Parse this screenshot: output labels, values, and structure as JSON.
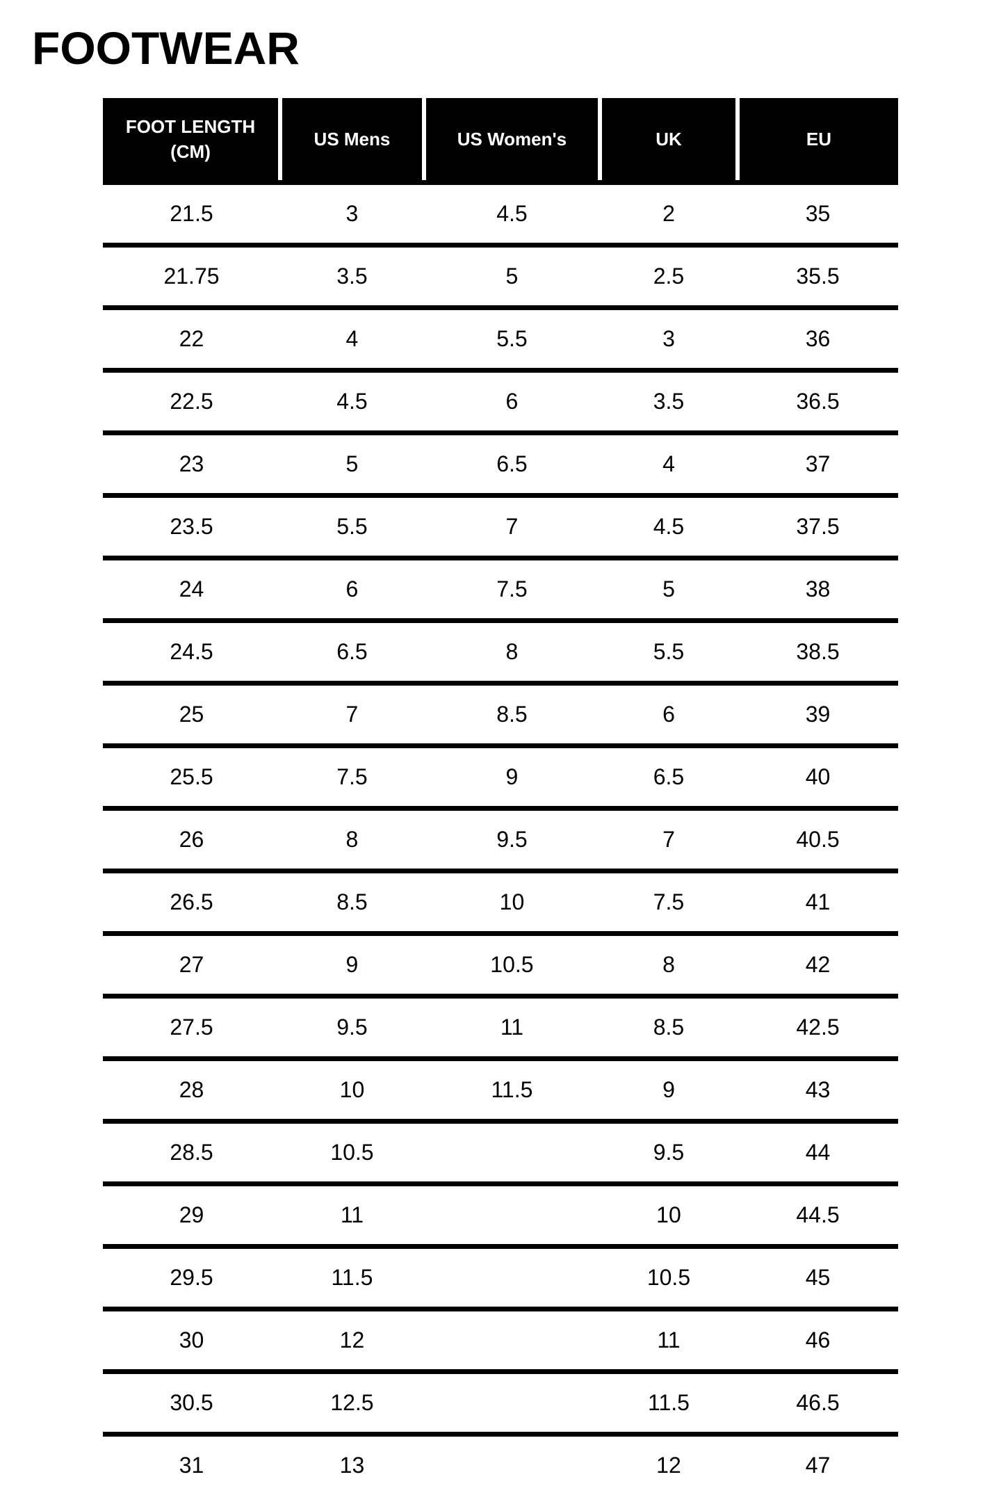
{
  "title": "FOOTWEAR",
  "table": {
    "columns": [
      "FOOT LENGTH (CM)",
      "US Mens",
      "US Women's",
      "UK",
      "EU"
    ],
    "rows": [
      [
        "21.5",
        "3",
        "4.5",
        "2",
        "35"
      ],
      [
        "21.75",
        "3.5",
        "5",
        "2.5",
        "35.5"
      ],
      [
        "22",
        "4",
        "5.5",
        "3",
        "36"
      ],
      [
        "22.5",
        "4.5",
        "6",
        "3.5",
        "36.5"
      ],
      [
        "23",
        "5",
        "6.5",
        "4",
        "37"
      ],
      [
        "23.5",
        "5.5",
        "7",
        "4.5",
        "37.5"
      ],
      [
        "24",
        "6",
        "7.5",
        "5",
        "38"
      ],
      [
        "24.5",
        "6.5",
        "8",
        "5.5",
        "38.5"
      ],
      [
        "25",
        "7",
        "8.5",
        "6",
        "39"
      ],
      [
        "25.5",
        "7.5",
        "9",
        "6.5",
        "40"
      ],
      [
        "26",
        "8",
        "9.5",
        "7",
        "40.5"
      ],
      [
        "26.5",
        "8.5",
        "10",
        "7.5",
        "41"
      ],
      [
        "27",
        "9",
        "10.5",
        "8",
        "42"
      ],
      [
        "27.5",
        "9.5",
        "11",
        "8.5",
        "42.5"
      ],
      [
        "28",
        "10",
        "11.5",
        "9",
        "43"
      ],
      [
        "28.5",
        "10.5",
        "",
        "9.5",
        "44"
      ],
      [
        "29",
        "11",
        "",
        "10",
        "44.5"
      ],
      [
        "29.5",
        "11.5",
        "",
        "10.5",
        "45"
      ],
      [
        "30",
        "12",
        "",
        "11",
        "46"
      ],
      [
        "30.5",
        "12.5",
        "",
        "11.5",
        "46.5"
      ],
      [
        "31",
        "13",
        "",
        "12",
        "47"
      ]
    ]
  },
  "colors": {
    "header_bg": "#000000",
    "header_text": "#ffffff",
    "body_text": "#000000",
    "row_rule": "#000000",
    "page_bg": "#ffffff"
  }
}
